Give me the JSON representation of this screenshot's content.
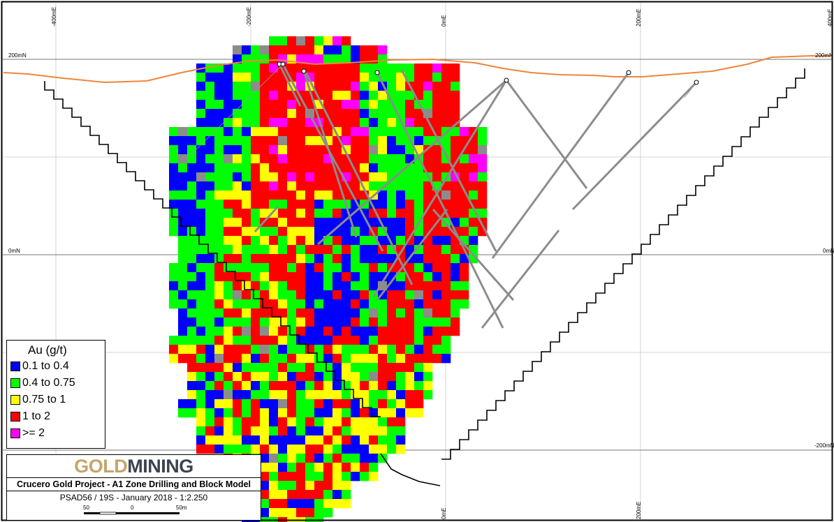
{
  "map": {
    "grid_labels": {
      "easting": [
        "-400mE",
        "-200mE",
        "0mE",
        "200mE",
        "400mE"
      ],
      "northing": [
        "200mN",
        "0mN",
        "-200mN"
      ]
    },
    "colors": {
      "topography": "#f0843a",
      "pit_outline": "#000000",
      "drillhole": "#8c8c8c",
      "grid": "#c8c8c8",
      "frame": "#000000"
    },
    "icons": [
      "collar-marker-icon"
    ]
  },
  "legend": {
    "title": "Au (g/t)",
    "items": [
      {
        "label": "0.1 to 0.4",
        "color": "#0000ff"
      },
      {
        "label": "0.4 to 0.75",
        "color": "#00ff00"
      },
      {
        "label": "0.75 to 1",
        "color": "#ffff00"
      },
      {
        "label": "1 to 2",
        "color": "#ff0000"
      },
      {
        "label": ">= 2",
        "color": "#ff00ff"
      }
    ]
  },
  "title_block": {
    "logo_gold": "GOLD",
    "logo_mining": "MINING",
    "logo_gold_color": "#c5a46a",
    "logo_mining_color": "#3b4450",
    "project_title": "Crucero Gold Project - A1 Zone Drilling and Block Model",
    "info": "PSAD56 / 19S - January 2018 - 1:2.250",
    "scale_labels": [
      "50",
      "0",
      "50m"
    ]
  }
}
